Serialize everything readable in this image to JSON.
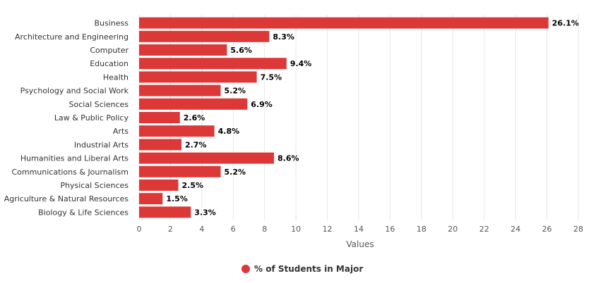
{
  "chart_data": {
    "type": "bar",
    "orientation": "horizontal",
    "categories": [
      "Business",
      "Architecture and Engineering",
      "Computer",
      "Education",
      "Health",
      "Psychology and Social Work",
      "Social Sciences",
      "Law & Public Policy",
      "Arts",
      "Industrial Arts",
      "Humanities and Liberal Arts",
      "Communications & Journalism",
      "Physical Sciences",
      "Agriculture & Natural Resources",
      "Biology & Life Sciences"
    ],
    "series": [
      {
        "name": "% of Students in Major",
        "values": [
          26.1,
          8.3,
          5.6,
          9.4,
          7.5,
          5.2,
          6.9,
          2.6,
          4.8,
          2.7,
          8.6,
          5.2,
          2.5,
          1.5,
          3.3
        ],
        "data_labels": [
          "26.1%",
          "8.3%",
          "5.6%",
          "9.4%",
          "7.5%",
          "5.2%",
          "6.9%",
          "2.6%",
          "4.8%",
          "2.7%",
          "8.6%",
          "5.2%",
          "2.5%",
          "1.5%",
          "3.3%"
        ],
        "color": "#dc3838"
      }
    ],
    "x_ticks": [
      "0",
      "2",
      "4",
      "6",
      "8",
      "10",
      "12",
      "14",
      "16",
      "18",
      "20",
      "22",
      "24",
      "26",
      "28"
    ],
    "xlabel": "Values",
    "xlim": [
      0,
      28
    ],
    "grid": true,
    "legend": "bottom-center"
  }
}
